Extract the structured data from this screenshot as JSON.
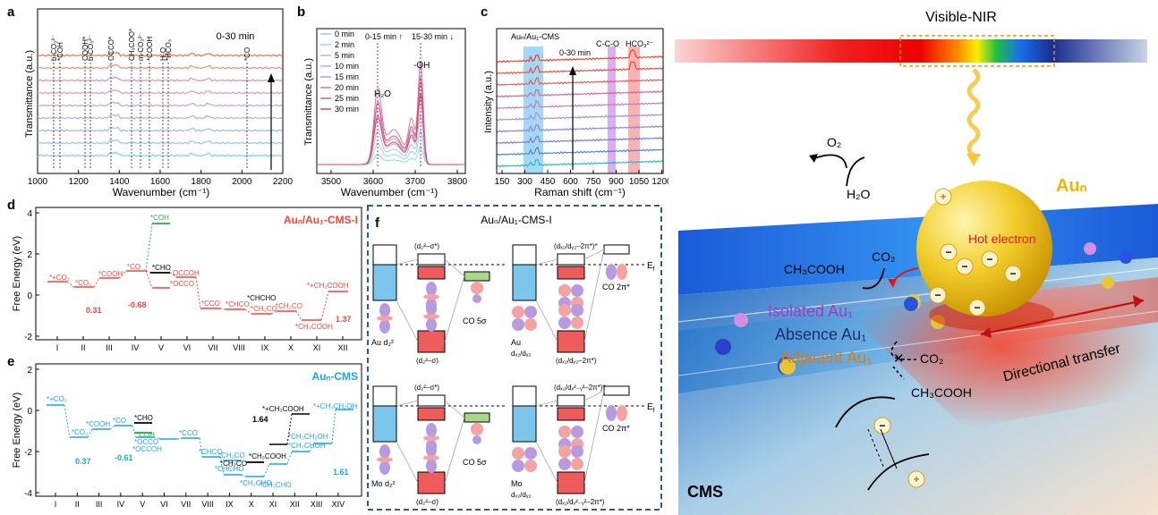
{
  "panels": {
    "a": {
      "letter": "a",
      "xlabel": "Wavenumber (cm⁻¹)",
      "ylabel": "Transmittance (a.u.)",
      "time_note": "0-30 min",
      "xticks": [
        "1000",
        "1200",
        "1400",
        "1600",
        "1800",
        "2000",
        "2200"
      ],
      "peaks": [
        "b-CO₃²⁻",
        "*COH",
        "COOH*",
        "b-CO₃²⁻",
        "OCCO*",
        "CH₃COO*",
        "m-CO₃²⁻",
        "*COOH",
        "H₂O",
        "*HCO₃",
        "*CO"
      ]
    },
    "b": {
      "letter": "b",
      "xlabel": "Wavenumber (cm⁻¹)",
      "ylabel": "Transmittance (a.u.)",
      "xticks": [
        "3500",
        "3600",
        "3700",
        "3800"
      ],
      "legend": [
        "0 min",
        "2 min",
        "5 min",
        "10 min",
        "15 min",
        "20 min",
        "25 min",
        "30 min"
      ],
      "arrows_note_1": "0-15 min",
      "arrows_note_2": "15-30 min",
      "h2o_label": "H₂O",
      "oh_label": "-OH"
    },
    "c": {
      "letter": "c",
      "xlabel": "Raman shift (cm⁻¹)",
      "ylabel": "Intensity (a.u.)",
      "xticks": [
        "150",
        "300",
        "450",
        "600",
        "750",
        "900",
        "1050",
        "1200"
      ],
      "band1": "Auₙ/Au₁-CMS",
      "band2": "C-C-O",
      "band3": "HCO₃²⁻",
      "time_note": "0-30 min"
    },
    "d": {
      "letter": "d",
      "title": "Auₙ/Au₁-CMS-I",
      "ylabel": "Free Energy (eV)",
      "yticks": [
        "4",
        "2",
        "0",
        "-2"
      ],
      "xticks": [
        "I",
        "II",
        "III",
        "IV",
        "V",
        "VI",
        "VII",
        "VIII",
        "IX",
        "X",
        "XI",
        "XII"
      ],
      "species": [
        "*+CO₂",
        "*CO₂",
        "*COOH",
        "*CO",
        "*CHO",
        "*COH",
        "*OCCO",
        "OCCOH",
        "*CCO",
        "*CHCO",
        "*CHCHO",
        "*CH₂CO",
        "*CH₃CO",
        "*CH₃COOH",
        "*+CH₃COOH"
      ],
      "barriers": [
        "0.31",
        "-0.68",
        "1.37"
      ]
    },
    "e": {
      "letter": "e",
      "title": "Auₙ-CMS",
      "ylabel": "Free Energy (eV)",
      "yticks": [
        "2",
        "0",
        "-2",
        "-4"
      ],
      "xticks": [
        "I",
        "II",
        "III",
        "IV",
        "V",
        "VI",
        "VII",
        "VIII",
        "IX",
        "X",
        "XI",
        "XII",
        "XIII",
        "XIV"
      ],
      "species": [
        "*+CO₂",
        "*CO₂",
        "*COOH",
        "*CO",
        "*CHO",
        "*COH",
        "*OCCO",
        "*OCCOH",
        "*CCO",
        "*CHCO",
        "*CH₂CO",
        "*CH₃CO",
        "*CHCHO",
        "*CH₂CHO",
        "*CH₃CHO",
        "*CH₃COOH",
        "*CH₃CHOH",
        "*CH₃CH₂OH",
        "*+CH₃COOH",
        "*+CH₃CH₂OH"
      ],
      "barriers": [
        "0.37",
        "-0.61",
        "1.64",
        "1.61"
      ]
    },
    "f": {
      "letter": "f",
      "title": "Auₙ/Au₁-CMS-I",
      "ef": "E",
      "ef_sub": "f",
      "top_left": {
        "sigma_star": "(d₂²–σ*)",
        "sigma": "(d₂²–σ)",
        "metal": "Au d₂²",
        "co": "CO 5σ"
      },
      "top_right": {
        "pi_star": "(dₓ₂/dᵧ₂–2π*)*",
        "pi": "(dₓ₂/dᵧ₂–2π*)",
        "metal": "Au",
        "metal2": "dₓ₂/dᵧ₂",
        "co": "CO 2π*"
      },
      "bottom_left": {
        "sigma_star": "(d₂²–σ*)",
        "sigma": "(d₂²–σ)",
        "metal": "Mo d₂²",
        "co": "CO 5σ"
      },
      "bottom_right": {
        "pi_star": "(dₓ₂/dₓ²₋ᵧ²–2π*)*",
        "pi": "(dₓ₂/dₓ²₋ᵧ²–2π*)",
        "metal": "Mo",
        "metal2": "dₓ₂/dᵧ₂",
        "co": "CO 2π*"
      }
    },
    "scheme": {
      "spectrum_label": "Visible-NIR",
      "o2": "O₂",
      "h2o": "H₂O",
      "aun": "Auₙ",
      "hot_electron": "Hot electron",
      "co2_a": "CO₂",
      "ch3cooh_a": "CH₃COOH",
      "isolated": "Isolated Au₁",
      "absence": "Absence Au₁",
      "adjacent": "Adjacent Au₁",
      "co2_b": "CO₂",
      "ch3cooh_b": "CH₃COOH",
      "directional": "Directional transfer",
      "cms": "CMS"
    }
  },
  "colors": {
    "red": "#f0443a",
    "blue": "#1aa3e8",
    "green": "#2eaa4a",
    "dash": "#2d5c8f"
  }
}
